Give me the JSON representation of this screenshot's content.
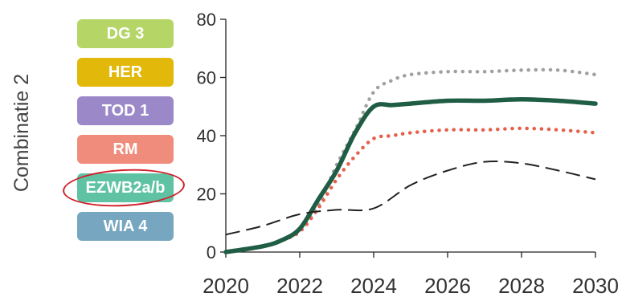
{
  "side_title": "Combinatie 2",
  "legend": [
    {
      "label": "DG 3",
      "color": "#b5d567"
    },
    {
      "label": "HER",
      "color": "#e2b80b"
    },
    {
      "label": "TOD 1",
      "color": "#9b88c9"
    },
    {
      "label": "RM",
      "color": "#ef8c7c"
    },
    {
      "label": "EZWB2a/b",
      "color": "#5fc3a3",
      "highlighted": true
    },
    {
      "label": "WIA 4",
      "color": "#76a6c0"
    }
  ],
  "chart_data": {
    "type": "line",
    "title": "",
    "xlabel": "",
    "ylabel": "",
    "xlim": [
      2020,
      2030
    ],
    "ylim": [
      0,
      80
    ],
    "x_ticks": [
      "2020",
      "2022",
      "2024",
      "2026",
      "2028",
      "2030"
    ],
    "y_ticks": [
      "0",
      "20",
      "40",
      "60",
      "80"
    ],
    "grid": false,
    "series": [
      {
        "style": "dotted",
        "color": "#a0a0a0",
        "x": [
          2020,
          2021,
          2021.5,
          2022,
          2022.5,
          2023,
          2023.5,
          2024,
          2024.5,
          2025,
          2026,
          2027,
          2028,
          2029,
          2030
        ],
        "y": [
          0,
          2,
          4,
          8,
          16,
          30,
          42,
          55,
          59,
          61,
          62,
          62,
          62.5,
          62.5,
          61
        ]
      },
      {
        "style": "dotted",
        "color": "#e5604a",
        "x": [
          2020,
          2021,
          2021.5,
          2022,
          2022.5,
          2023,
          2023.5,
          2024,
          2024.5,
          2025,
          2026,
          2027,
          2028,
          2029,
          2030
        ],
        "y": [
          0,
          2,
          4,
          7,
          15,
          25,
          33,
          39,
          40,
          41,
          42,
          42,
          42.5,
          42,
          41
        ]
      },
      {
        "style": "solid",
        "color": "#1f5d45",
        "x": [
          2020,
          2021,
          2021.5,
          2022,
          2022.5,
          2023,
          2023.5,
          2024,
          2024.5,
          2025,
          2026,
          2027,
          2028,
          2029,
          2030
        ],
        "y": [
          0,
          2,
          4,
          8,
          18,
          28,
          41,
          50,
          50.5,
          51,
          52,
          52,
          52.5,
          52,
          51
        ]
      },
      {
        "style": "dashed",
        "color": "#222222",
        "x": [
          2020,
          2021,
          2022,
          2023,
          2024,
          2025,
          2026,
          2027,
          2028,
          2029,
          2030
        ],
        "y": [
          6,
          9,
          13,
          14.5,
          15,
          23,
          28,
          31,
          30.5,
          28,
          25
        ]
      }
    ]
  }
}
